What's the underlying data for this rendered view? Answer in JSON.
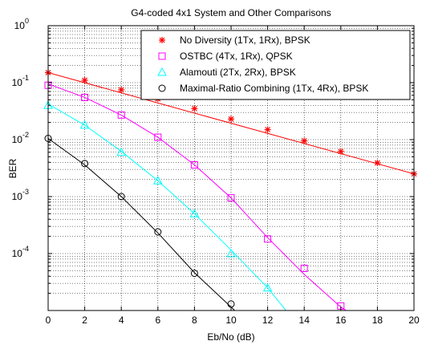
{
  "chart_data": {
    "type": "line",
    "title": "G4-coded 4x1 System and Other Comparisons",
    "xlabel": "Eb/No (dB)",
    "ylabel": "BER",
    "xlim": [
      0,
      20
    ],
    "ylim": [
      1e-05,
      1
    ],
    "yscale": "log",
    "grid": true,
    "legend_position": "top-right",
    "xticks": [
      "0",
      "2",
      "4",
      "6",
      "8",
      "10",
      "12",
      "14",
      "16",
      "18",
      "20"
    ],
    "yticks": [
      {
        "value": 1,
        "base": "10",
        "exp": "0"
      },
      {
        "value": 0.1,
        "base": "10",
        "exp": "-1"
      },
      {
        "value": 0.01,
        "base": "10",
        "exp": "-2"
      },
      {
        "value": 0.001,
        "base": "10",
        "exp": "-3"
      },
      {
        "value": 0.0001,
        "base": "10",
        "exp": "-4"
      }
    ],
    "series": [
      {
        "name": "No Diversity (1Tx, 1Rx), BPSK",
        "color": "#ff0000",
        "marker": "star",
        "x": [
          0,
          2,
          4,
          6,
          8,
          10,
          12,
          14,
          16,
          18,
          20
        ],
        "y": [
          0.15,
          0.11,
          0.075,
          0.052,
          0.035,
          0.023,
          0.015,
          0.0095,
          0.0062,
          0.0039,
          0.0025
        ],
        "curve_x": [
          0,
          20
        ],
        "curve_y": [
          0.15,
          0.0025
        ]
      },
      {
        "name": "OSTBC (4Tx, 1Rx), QPSK",
        "color": "#ff00ff",
        "marker": "square",
        "x": [
          0,
          2,
          4,
          6,
          8,
          10,
          12,
          14,
          16
        ],
        "y": [
          0.09,
          0.055,
          0.027,
          0.011,
          0.0036,
          0.00095,
          0.00018,
          5.5e-05,
          1.2e-05
        ],
        "curve_x": [
          0,
          2,
          4,
          6,
          8,
          10,
          12,
          14,
          16,
          16.3
        ],
        "curve_y": [
          0.095,
          0.055,
          0.027,
          0.011,
          0.0036,
          0.00095,
          0.00019,
          4.3e-05,
          1.15e-05,
          1e-05
        ]
      },
      {
        "name": "Alamouti (2Tx, 2Rx), BPSK",
        "color": "#00ffff",
        "marker": "triangle",
        "x": [
          0,
          2,
          4,
          6,
          8,
          10,
          12
        ],
        "y": [
          0.04,
          0.018,
          0.006,
          0.0019,
          0.0005,
          0.0001,
          2.5e-05
        ],
        "curve_x": [
          0,
          2,
          4,
          6,
          8,
          10,
          12,
          13
        ],
        "curve_y": [
          0.042,
          0.018,
          0.0062,
          0.0019,
          0.0005,
          0.000115,
          2.5e-05,
          1e-05
        ]
      },
      {
        "name": "Maximal-Ratio Combining (1Tx, 4Rx), BPSK",
        "color": "#000000",
        "marker": "circle",
        "x": [
          0,
          2,
          4,
          6,
          8,
          10
        ],
        "y": [
          0.0105,
          0.0038,
          0.001,
          0.00024,
          4.5e-05,
          1.3e-05
        ],
        "curve_x": [
          0,
          2,
          4,
          6,
          8,
          10,
          10.2
        ],
        "curve_y": [
          0.0105,
          0.0036,
          0.001,
          0.00023,
          4.6e-05,
          1.15e-05,
          1e-05
        ]
      }
    ]
  }
}
